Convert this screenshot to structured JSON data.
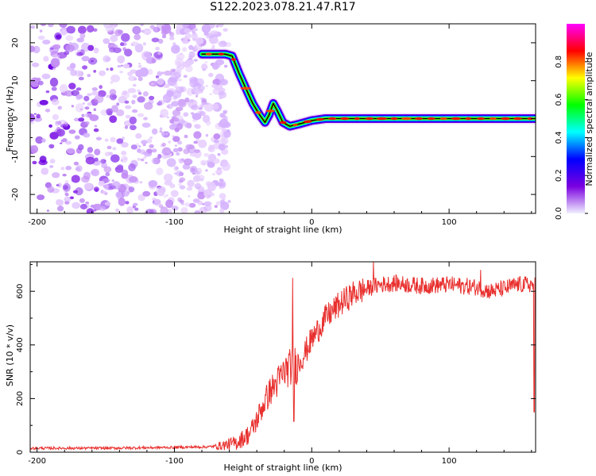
{
  "title": "S122.2023.078.21.47.R17",
  "chart_data": [
    {
      "type": "heatmap",
      "title": "",
      "xlabel": "Height of straight line (km)",
      "ylabel": "Frequency (Hz)",
      "xlim": [
        -205,
        163
      ],
      "ylim": [
        -25,
        25
      ],
      "xticks": [
        -200,
        -100,
        0,
        100
      ],
      "xticklabels": [
        "-200",
        "-100",
        "0",
        "100"
      ],
      "yticks": [
        -20,
        -10,
        0,
        10,
        20
      ],
      "yticklabels": [
        "-20",
        "-10",
        "0",
        "10",
        "20"
      ],
      "signal_track": {
        "x": [
          -80,
          -63,
          -58,
          -53,
          -48,
          -43,
          -38,
          -34,
          -31,
          -28,
          -25,
          -21,
          -16,
          -10,
          -5,
          0,
          10,
          25,
          40,
          60,
          80,
          100,
          120,
          140,
          163
        ],
        "y": [
          17,
          17,
          16.5,
          12,
          8,
          4,
          1,
          -1,
          1,
          4,
          2,
          -1,
          -2,
          -1.5,
          -1,
          -0.5,
          0,
          0,
          0,
          0,
          0,
          0,
          0,
          0,
          0
        ]
      },
      "noise_region_x": [
        -205,
        -60
      ],
      "colorbar": {
        "label": "Normalized spectral amplitude",
        "range": [
          0,
          1
        ],
        "ticks": [
          0.0,
          0.2,
          0.4,
          0.6,
          0.8
        ],
        "ticklabels": [
          "0.0",
          "0.2",
          "0.4",
          "0.6",
          "0.8"
        ],
        "colormap": [
          "#f0f0ff",
          "#7b00e0",
          "#0000ff",
          "#00ffff",
          "#00ff00",
          "#ffff00",
          "#ff0000",
          "#ff00ff"
        ]
      }
    },
    {
      "type": "line",
      "title": "",
      "xlabel": "Height of straight line (km)",
      "ylabel": "SNR (10 * v/v)",
      "xlim": [
        -205,
        163
      ],
      "ylim": [
        0,
        710
      ],
      "xticks": [
        -200,
        -100,
        0,
        100
      ],
      "xticklabels": [
        "-200",
        "-100",
        "0",
        "100"
      ],
      "yticks": [
        0,
        200,
        400,
        600
      ],
      "yticklabels": [
        "0",
        "200",
        "400",
        "600"
      ],
      "series": [
        {
          "name": "SNR",
          "color": "#e8302e",
          "x": [
            -205,
            -150,
            -100,
            -75,
            -65,
            -55,
            -45,
            -40,
            -35,
            -30,
            -25,
            -20,
            -15,
            -10,
            -5,
            0,
            10,
            20,
            30,
            40,
            50,
            60,
            80,
            100,
            120,
            130,
            140,
            150,
            163
          ],
          "y": [
            15,
            15,
            18,
            20,
            25,
            35,
            70,
            120,
            180,
            230,
            260,
            300,
            320,
            330,
            370,
            420,
            500,
            550,
            590,
            610,
            625,
            630,
            620,
            625,
            615,
            600,
            610,
            625,
            625
          ],
          "spikes": [
            {
              "x": -14,
              "y": 650
            },
            {
              "x": -13,
              "y": 115
            },
            {
              "x": 45,
              "y": 710
            },
            {
              "x": 123,
              "y": 680
            },
            {
              "x": 162,
              "y": 150
            }
          ]
        }
      ]
    }
  ]
}
